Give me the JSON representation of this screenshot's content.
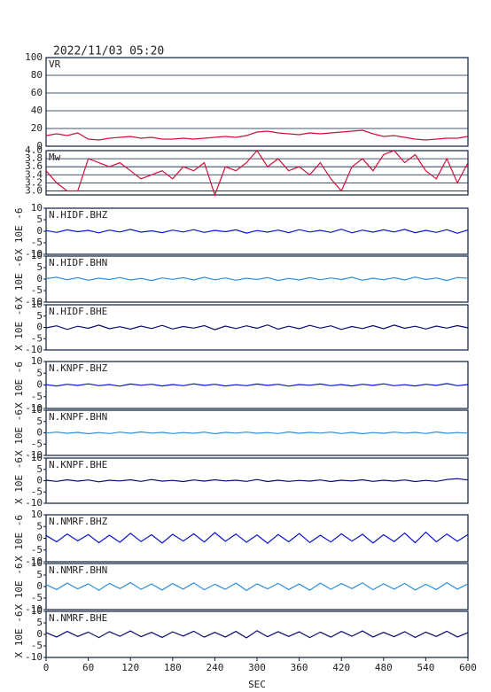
{
  "title": "2022/11/03 05:20",
  "chart_data": [
    {
      "type": "line",
      "title": "VR",
      "color": "#d0103a",
      "grid": true,
      "xlim": [
        0,
        600
      ],
      "ylim": [
        0,
        100
      ],
      "yticks": [
        0,
        20,
        40,
        60,
        80,
        100
      ],
      "x": [
        0,
        15,
        30,
        45,
        60,
        75,
        90,
        105,
        120,
        135,
        150,
        165,
        180,
        195,
        210,
        225,
        240,
        255,
        270,
        285,
        300,
        315,
        330,
        345,
        360,
        375,
        390,
        405,
        420,
        435,
        450,
        465,
        480,
        495,
        510,
        525,
        540,
        555,
        570,
        585,
        600
      ],
      "values": [
        12,
        14,
        12,
        15,
        8,
        7,
        9,
        10,
        11,
        9,
        10,
        8,
        8,
        9,
        8,
        9,
        10,
        11,
        10,
        12,
        16,
        17,
        15,
        14,
        13,
        15,
        14,
        15,
        16,
        17,
        18,
        14,
        11,
        12,
        10,
        8,
        7,
        8,
        9,
        9,
        11
      ]
    },
    {
      "type": "line",
      "title": "Mw",
      "color": "#d0103a",
      "grid": true,
      "xlim": [
        0,
        600
      ],
      "ylim": [
        2.9,
        4.0
      ],
      "yticks": [
        {
          "value": 3,
          "label": "3.0"
        },
        3.2,
        3.4,
        3.6,
        3.8,
        {
          "value": 4,
          "label": "4.0"
        }
      ],
      "x": [
        0,
        15,
        30,
        45,
        60,
        75,
        90,
        105,
        120,
        135,
        150,
        165,
        180,
        195,
        210,
        225,
        240,
        255,
        270,
        285,
        300,
        315,
        330,
        345,
        360,
        375,
        390,
        405,
        420,
        435,
        450,
        465,
        480,
        495,
        510,
        525,
        540,
        555,
        570,
        585,
        600
      ],
      "values": [
        3.5,
        3.2,
        3.0,
        3.0,
        3.8,
        3.7,
        3.6,
        3.7,
        3.5,
        3.3,
        3.4,
        3.5,
        3.3,
        3.6,
        3.5,
        3.7,
        2.9,
        3.6,
        3.5,
        3.7,
        4.0,
        3.6,
        3.8,
        3.5,
        3.6,
        3.4,
        3.7,
        3.3,
        3.0,
        3.6,
        3.8,
        3.5,
        3.9,
        4.0,
        3.7,
        3.9,
        3.5,
        3.3,
        3.8,
        3.2,
        3.7
      ]
    },
    {
      "type": "line",
      "title": "N.HIDF.BHZ",
      "ylabel": "X 10E -6",
      "color": "#0a14c8",
      "xlim": [
        0,
        600
      ],
      "ylim": [
        -10,
        10
      ],
      "yticks": [
        -10,
        -5,
        0,
        5,
        10
      ],
      "x": [
        0,
        15,
        30,
        45,
        60,
        75,
        90,
        105,
        120,
        135,
        150,
        165,
        180,
        195,
        210,
        225,
        240,
        255,
        270,
        285,
        300,
        315,
        330,
        345,
        360,
        375,
        390,
        405,
        420,
        435,
        450,
        465,
        480,
        495,
        510,
        525,
        540,
        555,
        570,
        585,
        600
      ],
      "values": [
        0.3,
        -0.5,
        0.6,
        -0.2,
        0.4,
        -0.7,
        0.5,
        -0.3,
        0.8,
        -0.4,
        0.2,
        -0.6,
        0.5,
        -0.3,
        0.7,
        -0.5,
        0.4,
        -0.2,
        0.6,
        -0.8,
        0.3,
        -0.4,
        0.5,
        -0.6,
        0.7,
        -0.3,
        0.4,
        -0.5,
        0.9,
        -0.7,
        0.5,
        -0.4,
        0.6,
        -0.3,
        0.8,
        -0.6,
        0.4,
        -0.5,
        0.7,
        -0.9,
        0.6
      ]
    },
    {
      "type": "line",
      "title": "N.HIDF.BHN",
      "ylabel": "X 10E -6",
      "color": "#2a8ee0",
      "xlim": [
        0,
        600
      ],
      "ylim": [
        -10,
        10
      ],
      "yticks": [
        -10,
        -5,
        0,
        5,
        10
      ],
      "x": [
        0,
        15,
        30,
        45,
        60,
        75,
        90,
        105,
        120,
        135,
        150,
        165,
        180,
        195,
        210,
        225,
        240,
        255,
        270,
        285,
        300,
        315,
        330,
        345,
        360,
        375,
        390,
        405,
        420,
        435,
        450,
        465,
        480,
        495,
        510,
        525,
        540,
        555,
        570,
        585,
        600
      ],
      "values": [
        0.2,
        0.8,
        -0.3,
        0.6,
        -0.5,
        0.4,
        -0.2,
        0.7,
        -0.4,
        0.3,
        -0.6,
        0.5,
        -0.1,
        0.6,
        -0.4,
        0.8,
        -0.3,
        0.5,
        -0.5,
        0.4,
        -0.2,
        0.7,
        -0.6,
        0.3,
        -0.4,
        0.6,
        -0.3,
        0.5,
        -0.2,
        0.8,
        -0.5,
        0.4,
        -0.3,
        0.6,
        -0.4,
        0.9,
        -0.2,
        0.5,
        -0.6,
        0.7,
        0.4
      ]
    },
    {
      "type": "line",
      "title": "N.HIDF.BHE",
      "ylabel": "X 10E -6",
      "color": "#0a0a6e",
      "xlim": [
        0,
        600
      ],
      "ylim": [
        -10,
        10
      ],
      "yticks": [
        -10,
        -5,
        0,
        5,
        10
      ],
      "x": [
        0,
        15,
        30,
        45,
        60,
        75,
        90,
        105,
        120,
        135,
        150,
        165,
        180,
        195,
        210,
        225,
        240,
        255,
        270,
        285,
        300,
        315,
        330,
        345,
        360,
        375,
        390,
        405,
        420,
        435,
        450,
        465,
        480,
        495,
        510,
        525,
        540,
        555,
        570,
        585,
        600
      ],
      "values": [
        -0.2,
        0.7,
        -0.9,
        0.5,
        -0.4,
        1.0,
        -0.6,
        0.3,
        -0.8,
        0.6,
        -0.5,
        0.9,
        -0.7,
        0.4,
        -0.3,
        0.8,
        -1.0,
        0.6,
        -0.5,
        0.7,
        -0.4,
        1.1,
        -0.8,
        0.5,
        -0.6,
        0.9,
        -0.3,
        0.7,
        -0.9,
        0.4,
        -0.5,
        0.8,
        -0.6,
        1.0,
        -0.4,
        0.5,
        -0.7,
        0.6,
        -0.3,
        0.8,
        -0.2
      ]
    },
    {
      "type": "line",
      "title": "N.KNPF.BHZ",
      "ylabel": "X 10E -6",
      "color": "#0a14c8",
      "xlim": [
        0,
        600
      ],
      "ylim": [
        -10,
        10
      ],
      "yticks": [
        -10,
        -5,
        0,
        5,
        10
      ],
      "x": [
        0,
        15,
        30,
        45,
        60,
        75,
        90,
        105,
        120,
        135,
        150,
        165,
        180,
        195,
        210,
        225,
        240,
        255,
        270,
        285,
        300,
        315,
        330,
        345,
        360,
        375,
        390,
        405,
        420,
        435,
        450,
        465,
        480,
        495,
        510,
        525,
        540,
        555,
        570,
        585,
        600
      ],
      "values": [
        0.1,
        -0.4,
        0.3,
        -0.2,
        0.5,
        -0.3,
        0.2,
        -0.5,
        0.4,
        -0.1,
        0.3,
        -0.4,
        0.2,
        -0.3,
        0.5,
        -0.2,
        0.3,
        -0.4,
        0.1,
        -0.3,
        0.4,
        -0.2,
        0.3,
        -0.5,
        0.2,
        -0.1,
        0.4,
        -0.3,
        0.2,
        -0.4,
        0.3,
        -0.2,
        0.5,
        -0.3,
        0.1,
        -0.4,
        0.3,
        -0.2,
        0.6,
        -0.3,
        0.2
      ]
    },
    {
      "type": "line",
      "title": "N.KNPF.BHN",
      "ylabel": "X 10E -6",
      "color": "#2a8ee0",
      "xlim": [
        0,
        600
      ],
      "ylim": [
        -10,
        10
      ],
      "yticks": [
        -10,
        -5,
        0,
        5,
        10
      ],
      "x": [
        0,
        15,
        30,
        45,
        60,
        75,
        90,
        105,
        120,
        135,
        150,
        165,
        180,
        195,
        210,
        225,
        240,
        255,
        270,
        285,
        300,
        315,
        330,
        345,
        360,
        375,
        390,
        405,
        420,
        435,
        450,
        465,
        480,
        495,
        510,
        525,
        540,
        555,
        570,
        585,
        600
      ],
      "values": [
        -0.1,
        0.3,
        -0.2,
        0.2,
        -0.4,
        0.1,
        -0.3,
        0.3,
        -0.2,
        0.4,
        -0.1,
        0.2,
        -0.3,
        0.1,
        -0.2,
        0.3,
        -0.4,
        0.2,
        -0.1,
        0.3,
        -0.2,
        0.1,
        -0.3,
        0.4,
        -0.2,
        0.2,
        -0.1,
        0.3,
        -0.3,
        0.2,
        -0.4,
        0.1,
        -0.2,
        0.3,
        -0.1,
        0.2,
        -0.3,
        0.4,
        -0.2,
        0.1,
        -0.1
      ]
    },
    {
      "type": "line",
      "title": "N.KNPF.BHE",
      "ylabel": "X 10E -6",
      "color": "#0a0a6e",
      "xlim": [
        0,
        600
      ],
      "ylim": [
        -10,
        10
      ],
      "yticks": [
        -10,
        -5,
        0,
        5,
        10
      ],
      "x": [
        0,
        15,
        30,
        45,
        60,
        75,
        90,
        105,
        120,
        135,
        150,
        165,
        180,
        195,
        210,
        225,
        240,
        255,
        270,
        285,
        300,
        315,
        330,
        345,
        360,
        375,
        390,
        405,
        420,
        435,
        450,
        465,
        480,
        495,
        510,
        525,
        540,
        555,
        570,
        585,
        600
      ],
      "values": [
        0.2,
        -0.3,
        0.4,
        -0.2,
        0.3,
        -0.5,
        0.2,
        -0.1,
        0.4,
        -0.3,
        0.5,
        -0.2,
        0.1,
        -0.4,
        0.3,
        -0.2,
        0.4,
        -0.1,
        0.2,
        -0.3,
        0.5,
        -0.4,
        0.2,
        -0.3,
        0.1,
        -0.2,
        0.3,
        -0.4,
        0.2,
        -0.1,
        0.4,
        -0.3,
        0.2,
        -0.2,
        0.3,
        -0.4,
        0.1,
        -0.3,
        0.5,
        0.9,
        0.3
      ]
    },
    {
      "type": "line",
      "title": "N.NMRF.BHZ",
      "ylabel": "X 10E -6",
      "color": "#0a14c8",
      "xlim": [
        0,
        600
      ],
      "ylim": [
        -10,
        10
      ],
      "yticks": [
        -10,
        -5,
        0,
        5,
        10
      ],
      "x": [
        0,
        15,
        30,
        45,
        60,
        75,
        90,
        105,
        120,
        135,
        150,
        165,
        180,
        195,
        210,
        225,
        240,
        255,
        270,
        285,
        300,
        315,
        330,
        345,
        360,
        375,
        390,
        405,
        420,
        435,
        450,
        465,
        480,
        495,
        510,
        525,
        540,
        555,
        570,
        585,
        600
      ],
      "values": [
        1.2,
        -1.5,
        1.8,
        -1.1,
        1.6,
        -1.9,
        1.3,
        -1.7,
        2.1,
        -1.4,
        1.5,
        -2.0,
        1.7,
        -1.2,
        1.9,
        -1.6,
        2.4,
        -1.3,
        1.8,
        -1.7,
        1.4,
        -2.1,
        1.6,
        -1.5,
        2.0,
        -1.8,
        1.3,
        -1.6,
        1.9,
        -1.2,
        1.7,
        -2.0,
        1.5,
        -1.4,
        2.2,
        -1.9,
        2.6,
        -1.5,
        1.8,
        -1.3,
        1.6
      ]
    },
    {
      "type": "line",
      "title": "N.NMRF.BHN",
      "ylabel": "X 10E -6",
      "color": "#2a8ee0",
      "xlim": [
        0,
        600
      ],
      "ylim": [
        -10,
        10
      ],
      "yticks": [
        -10,
        -5,
        0,
        5,
        10
      ],
      "x": [
        0,
        15,
        30,
        45,
        60,
        75,
        90,
        105,
        120,
        135,
        150,
        165,
        180,
        195,
        210,
        225,
        240,
        255,
        270,
        285,
        300,
        315,
        330,
        345,
        360,
        375,
        390,
        405,
        420,
        435,
        450,
        465,
        480,
        495,
        510,
        525,
        540,
        555,
        570,
        585,
        600
      ],
      "values": [
        0.9,
        -1.3,
        1.5,
        -1.0,
        1.2,
        -1.6,
        1.4,
        -0.9,
        1.7,
        -1.2,
        1.1,
        -1.5,
        1.3,
        -1.1,
        1.6,
        -1.4,
        1.0,
        -1.2,
        1.5,
        -1.7,
        1.2,
        -1.0,
        1.4,
        -1.3,
        1.1,
        -1.6,
        1.5,
        -1.2,
        1.3,
        -0.9,
        1.6,
        -1.4,
        1.2,
        -1.1,
        1.4,
        -1.5,
        1.0,
        -1.3,
        1.7,
        -1.1,
        1.2
      ]
    },
    {
      "type": "line",
      "title": "N.NMRF.BHE",
      "ylabel": "X 10E -6",
      "color": "#0a0a6e",
      "xlim": [
        0,
        600
      ],
      "ylim": [
        -10,
        10
      ],
      "yticks": [
        -10,
        -5,
        0,
        5,
        10
      ],
      "xlabel": "SEC",
      "xticks": [
        0,
        60,
        120,
        180,
        240,
        300,
        360,
        420,
        480,
        540,
        600
      ],
      "x": [
        0,
        15,
        30,
        45,
        60,
        75,
        90,
        105,
        120,
        135,
        150,
        165,
        180,
        195,
        210,
        225,
        240,
        255,
        270,
        285,
        300,
        315,
        330,
        345,
        360,
        375,
        390,
        405,
        420,
        435,
        450,
        465,
        480,
        495,
        510,
        525,
        540,
        555,
        570,
        585,
        600
      ],
      "values": [
        0.8,
        -1.1,
        1.3,
        -0.9,
        1.0,
        -1.4,
        1.2,
        -0.8,
        1.5,
        -1.0,
        0.9,
        -1.3,
        1.1,
        -0.7,
        1.4,
        -1.2,
        0.9,
        -1.1,
        1.3,
        -1.5,
        1.6,
        -1.0,
        1.2,
        -0.9,
        1.1,
        -1.4,
        1.0,
        -1.2,
        1.3,
        -0.8,
        1.5,
        -1.1,
        0.9,
        -1.0,
        1.2,
        -1.3,
        1.0,
        -0.9,
        1.4,
        -1.1,
        0.8
      ]
    }
  ]
}
